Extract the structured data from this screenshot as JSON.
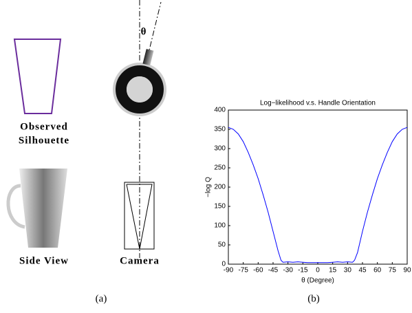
{
  "diagram": {
    "theta": "θ",
    "observed": "Observed",
    "silhouette": "Silhouette",
    "side_view": "Side View",
    "camera": "Camera",
    "caption_a": "(a)",
    "caption_b": "(b)"
  },
  "chart_data": {
    "type": "line",
    "title": "Log−likelihood v.s. Handle Orientation",
    "x_label": "θ (Degree)",
    "y_label": "−log Q",
    "x": [
      -90,
      -85,
      -80,
      -75,
      -70,
      -65,
      -60,
      -55,
      -50,
      -45,
      -40,
      -37,
      -35,
      -30,
      -25,
      -20,
      -15,
      -10,
      -5,
      0,
      5,
      10,
      15,
      20,
      25,
      30,
      35,
      37,
      40,
      45,
      50,
      55,
      60,
      65,
      70,
      75,
      80,
      85,
      90
    ],
    "series": [
      {
        "color": "#0000ff",
        "values": [
          355,
          350,
          338,
          318,
          290,
          258,
          222,
          180,
          135,
          85,
          35,
          10,
          5,
          6,
          5,
          6,
          5,
          4,
          4,
          4,
          4,
          4,
          5,
          6,
          5,
          6,
          5,
          10,
          30,
          85,
          135,
          180,
          222,
          258,
          290,
          318,
          338,
          350,
          355
        ]
      }
    ],
    "xlim": [
      -90,
      90
    ],
    "xticks": [
      -90,
      -75,
      -60,
      -45,
      -30,
      -15,
      0,
      15,
      30,
      45,
      60,
      75,
      90
    ],
    "ylim": [
      0,
      400
    ],
    "yticks": [
      0,
      50,
      100,
      150,
      200,
      250,
      300,
      350,
      400
    ]
  }
}
